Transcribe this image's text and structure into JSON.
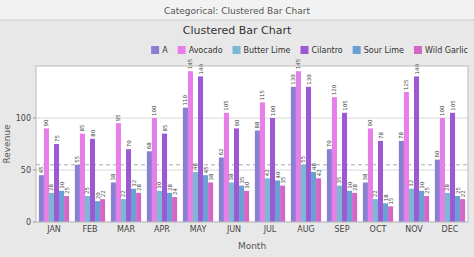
{
  "chart_data": {
    "type": "bar",
    "title": "Clustered Bar Chart",
    "page_title": "Categorical: Clustered Bar Chart",
    "x_label": "Month",
    "y_label": "Revenue",
    "categories": [
      "JAN",
      "FEB",
      "MAR",
      "APR",
      "MAY",
      "JUN",
      "JUL",
      "AUG",
      "SEP",
      "OCT",
      "NOV",
      "DEC"
    ],
    "series": [
      {
        "name": "A",
        "color": "#8B7FD4",
        "values": [
          45,
          55,
          38,
          68,
          110,
          62,
          88,
          130,
          70,
          38,
          78,
          60
        ]
      },
      {
        "name": "Avocado",
        "color": "#E87EE8",
        "values": [
          90,
          85,
          95,
          100,
          145,
          105,
          115,
          145,
          120,
          90,
          125,
          100
        ]
      },
      {
        "name": "Butter Lime",
        "color": "#7BB8D4",
        "values": [
          28,
          25,
          22,
          30,
          48,
          38,
          42,
          55,
          35,
          22,
          32,
          28
        ]
      },
      {
        "name": "Cilantro",
        "color": "#9B59D4",
        "values": [
          75,
          80,
          70,
          85,
          140,
          90,
          100,
          130,
          105,
          78,
          140,
          105
        ]
      },
      {
        "name": "Sour Lime",
        "color": "#6A9FD4",
        "values": [
          30,
          20,
          32,
          28,
          45,
          35,
          40,
          48,
          30,
          18,
          30,
          25
        ]
      },
      {
        "name": "Wild Garlic",
        "color": "#D466C8",
        "values": [
          25,
          22,
          28,
          24,
          38,
          30,
          35,
          42,
          28,
          15,
          25,
          22
        ]
      }
    ],
    "reference_line": 55,
    "ylim": [
      0,
      150
    ],
    "yticks": [
      0,
      50,
      100
    ],
    "grid": true,
    "legend": "top",
    "data_labels": true
  }
}
